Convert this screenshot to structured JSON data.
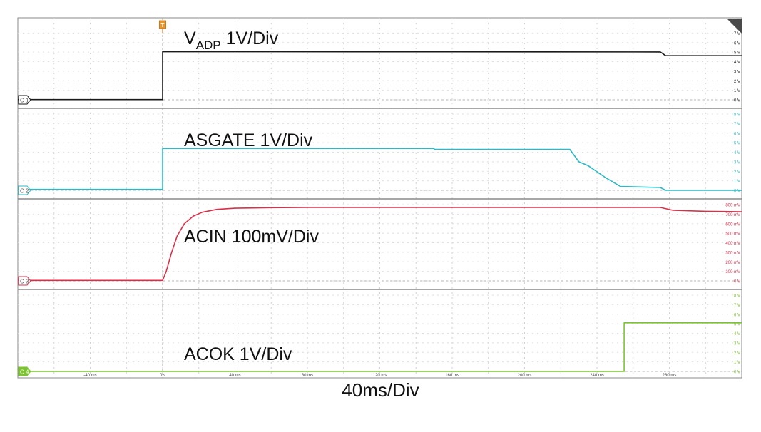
{
  "chart_data": {
    "type": "line",
    "title": "",
    "xlabel": "40ms/Div",
    "x_ticks": [
      -40,
      0,
      40,
      80,
      120,
      160,
      200,
      240,
      280
    ],
    "x_tick_labels": [
      "-40 ms",
      "0 s",
      "40 ms",
      "80 ms",
      "120 ms",
      "160 ms",
      "200 ms",
      "240 ms",
      "280 ms"
    ],
    "xlim": [
      -80,
      320
    ],
    "x_unit": "ms",
    "grid": true,
    "trigger_marker": "T",
    "channels": [
      {
        "id": "C1",
        "label_main": "V",
        "label_sub": "ADP",
        "label_rest": " 1V/Div",
        "color": "#1a1a1a",
        "ylim": [
          0,
          8
        ],
        "y_tick_labels": [
          "0 V",
          "1 V",
          "2 V",
          "3 V",
          "4 V",
          "5 V",
          "6 V",
          "7 V"
        ],
        "points": [
          [
            -80,
            0.02
          ],
          [
            0,
            0.02
          ],
          [
            0,
            5.05
          ],
          [
            275,
            5.02
          ],
          [
            278,
            4.62
          ],
          [
            320,
            4.62
          ]
        ]
      },
      {
        "id": "C2",
        "label": "ASGATE 1V/Div",
        "color": "#2cb8c4",
        "ylim": [
          0,
          8
        ],
        "y_tick_labels": [
          "0 V",
          "1 V",
          "2 V",
          "3 V",
          "4 V",
          "5 V",
          "6 V",
          "7 V",
          "8 V"
        ],
        "points": [
          [
            -80,
            0.1
          ],
          [
            0,
            0.1
          ],
          [
            0,
            4.4
          ],
          [
            150,
            4.4
          ],
          [
            150,
            4.3
          ],
          [
            225,
            4.3
          ],
          [
            230,
            3.0
          ],
          [
            235,
            2.6
          ],
          [
            245,
            1.3
          ],
          [
            253,
            0.4
          ],
          [
            275,
            0.3
          ],
          [
            278,
            0.0
          ],
          [
            320,
            0.0
          ]
        ]
      },
      {
        "id": "C3",
        "label": "ACIN 100mV/Div",
        "color": "#d9304a",
        "ylim": [
          0,
          800
        ],
        "y_tick_labels": [
          "0 V",
          "100 mV",
          "200 mV",
          "300 mV",
          "400 mV",
          "500 mV",
          "600 mV",
          "700 mV",
          "800 mV"
        ],
        "points": [
          [
            -80,
            5
          ],
          [
            0,
            5
          ],
          [
            2,
            100
          ],
          [
            5,
            300
          ],
          [
            8,
            470
          ],
          [
            12,
            600
          ],
          [
            17,
            680
          ],
          [
            22,
            720
          ],
          [
            30,
            750
          ],
          [
            40,
            762
          ],
          [
            60,
            768
          ],
          [
            80,
            770
          ],
          [
            275,
            770
          ],
          [
            282,
            740
          ],
          [
            300,
            730
          ],
          [
            320,
            725
          ]
        ]
      },
      {
        "id": "C4",
        "label": "ACOK 1V/Div",
        "color": "#7cc330",
        "ylim": [
          0,
          8
        ],
        "y_tick_labels": [
          "0 V",
          "1 V",
          "2 V",
          "3 V",
          "4 V",
          "5 V",
          "6 V",
          "7 V",
          "8 V"
        ],
        "points": [
          [
            -80,
            0.0
          ],
          [
            255,
            0.0
          ],
          [
            255,
            5.1
          ],
          [
            320,
            5.1
          ]
        ]
      }
    ]
  }
}
